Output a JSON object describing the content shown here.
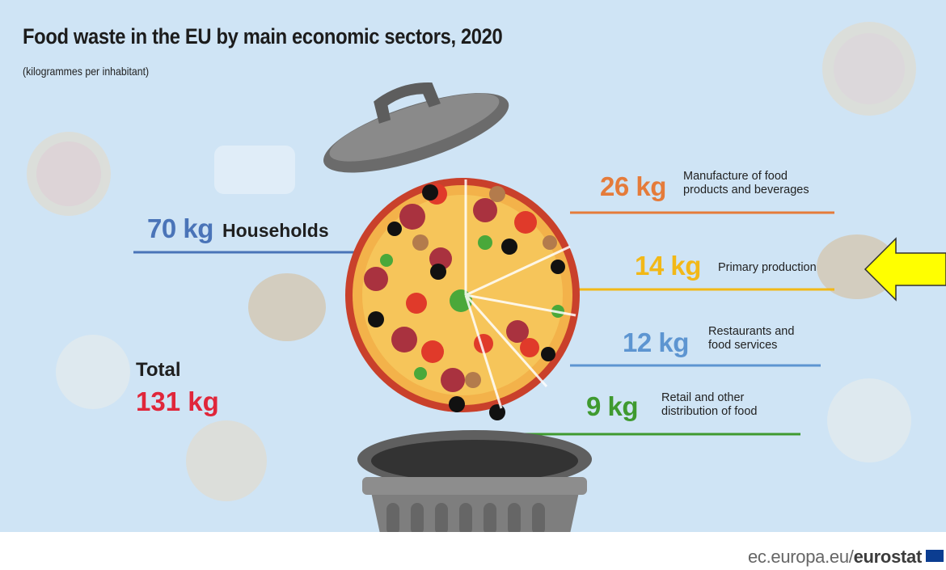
{
  "chart_data": {
    "type": "bar",
    "title": "Food waste in the EU by main economic sectors, 2020",
    "subtitle": "(kilogrammes per inhabitant)",
    "unit": "kg",
    "categories": [
      "Households",
      "Manufacture of food products and beverages",
      "Primary production",
      "Restaurants and food services",
      "Retail and other distribution of food"
    ],
    "values": [
      70,
      26,
      14,
      12,
      9
    ],
    "total": 131
  },
  "display": {
    "households": {
      "amount": "70 kg",
      "label": "Households"
    },
    "manufacture": {
      "amount": "26 kg",
      "label": "Manufacture of food\nproducts and beverages"
    },
    "primary": {
      "amount": "14 kg",
      "label": "Primary production"
    },
    "restaurants": {
      "amount": "12 kg",
      "label": "Restaurants and\nfood services"
    },
    "retail": {
      "amount": "9 kg",
      "label": "Retail and other\ndistribution of food"
    },
    "total": {
      "label": "Total",
      "value": "131 kg"
    }
  },
  "colors": {
    "households": "#4a74b8",
    "manufacture": "#e57b3a",
    "primary": "#f2b817",
    "restaurants": "#5d95d1",
    "retail": "#3f9a2f",
    "total": "#e0263a",
    "background": "#cfe4f5",
    "arrow": "#ffff00"
  },
  "footer": {
    "source_plain": "ec.europa.eu/",
    "source_bold": "eurostat"
  },
  "icons": [
    "trash-can-icon",
    "trash-lid-icon",
    "pizza-icon",
    "arrow-left-icon",
    "eu-flag-icon"
  ]
}
